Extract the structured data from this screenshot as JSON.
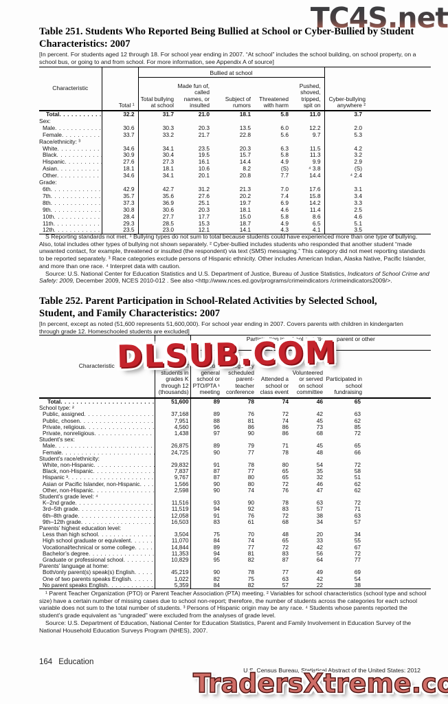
{
  "watermarks": {
    "top": "TC4S.net",
    "middle": "DLSUB.COM",
    "bottom": "TradersXtreme.com",
    "red": "#c4232b",
    "salmon": "#cf6d66"
  },
  "table251": {
    "title": "Table 251. Students Who Reported Being Bullied at School or Cyber-Bullied by Student Characteristics: 2007",
    "note": "[In percent. For students aged 12 through 18. For school year ending in 2007. “At school” includes the school building, on school property, on a school bus, or going to and from school. For more information, see Appendix A of source]",
    "header": {
      "characteristic": "Characteristic",
      "total": "Total ¹",
      "group": "Bullied at school",
      "sub": [
        "Total bullying at school",
        "Made fun of, called names, or insulted",
        "Subject of rumors",
        "Threatened with harm",
        "Pushed, shoved, tripped, spit on"
      ],
      "cyber": "Cyber-bullying anywhere ²"
    },
    "rows": [
      {
        "label": "Total",
        "indent": 10,
        "bold": true,
        "values": [
          "32.2",
          "31.7",
          "21.0",
          "18.1",
          "5.8",
          "11.0",
          "3.7"
        ]
      },
      {
        "label": "Sex:",
        "section": true
      },
      {
        "label": "Male",
        "indent": 5,
        "values": [
          "30.6",
          "30.3",
          "20.3",
          "13.5",
          "6.0",
          "12.2",
          "2.0"
        ]
      },
      {
        "label": "Female",
        "indent": 5,
        "values": [
          "33.7",
          "33.2",
          "21.7",
          "22.8",
          "5.6",
          "9.7",
          "5.3"
        ]
      },
      {
        "label": "Race/ethnicity: ³",
        "section": true
      },
      {
        "label": "White",
        "indent": 5,
        "values": [
          "34.6",
          "34.1",
          "23.5",
          "20.3",
          "6.3",
          "11.5",
          "4.2"
        ]
      },
      {
        "label": "Black",
        "indent": 5,
        "values": [
          "30.9",
          "30.4",
          "19.5",
          "15.7",
          "5.8",
          "11.3",
          "3.2"
        ]
      },
      {
        "label": "Hispanic",
        "indent": 5,
        "values": [
          "27.6",
          "27.3",
          "16.1",
          "14.4",
          "4.9",
          "9.9",
          "2.9"
        ]
      },
      {
        "label": "Asian",
        "indent": 5,
        "values": [
          "18.1",
          "18.1",
          "10.6",
          "8.2",
          "(S)",
          "⁴ 3.8",
          "(S)"
        ]
      },
      {
        "label": "Other",
        "indent": 5,
        "values": [
          "34.6",
          "34.1",
          "20.1",
          "20.8",
          "7.7",
          "14.4",
          "⁴ 2.4"
        ]
      },
      {
        "label": "Grade:",
        "section": true
      },
      {
        "label": "6th",
        "indent": 5,
        "values": [
          "42.9",
          "42.7",
          "31.2",
          "21.3",
          "7.0",
          "17.6",
          "3.1"
        ]
      },
      {
        "label": "7th",
        "indent": 5,
        "values": [
          "35.7",
          "35.6",
          "27.6",
          "20.2",
          "7.4",
          "15.8",
          "3.4"
        ]
      },
      {
        "label": "8th",
        "indent": 5,
        "values": [
          "37.3",
          "36.9",
          "25.1",
          "19.7",
          "6.9",
          "14.2",
          "3.3"
        ]
      },
      {
        "label": "9th",
        "indent": 5,
        "values": [
          "30.8",
          "30.6",
          "20.3",
          "18.1",
          "4.6",
          "11.4",
          "2.5"
        ]
      },
      {
        "label": "10th",
        "indent": 5,
        "values": [
          "28.4",
          "27.7",
          "17.7",
          "15.0",
          "5.8",
          "8.6",
          "4.6"
        ]
      },
      {
        "label": "11th",
        "indent": 5,
        "values": [
          "29.3",
          "28.5",
          "15.3",
          "18.7",
          "4.9",
          "6.5",
          "5.1"
        ]
      },
      {
        "label": "12th",
        "indent": 5,
        "values": [
          "23.5",
          "23.0",
          "12.1",
          "14.1",
          "4.3",
          "4.1",
          "3.5"
        ]
      }
    ],
    "footnote": "S Reporting standards not met. ¹ Bullying types do not sum to total because students could have experienced more than one type of bullying. Also, total includes other types of bullying not shown separately. ² Cyber-bullied includes students who responded that another student “made unwanted contact, for example, threatened or insulted (the respondent) via text (SMS) messaging.” This category did not meet reporting standards to be reported separately. ³ Race categories exclude persons of Hispanic ethnicity. Other includes American Indian, Alaska Native, Pacific Islander, and more than one race. ⁴ Interpret data with caution.",
    "source_pre": "Source: U.S. National Center for Education Statistics and U.S. Department of Justice, Bureau of Justice Statistics, ",
    "source_italic": "Indicators of School Crime and Safety: 2009,",
    "source_post": " December 2009, NCES 2010-012 . See also <http://www.nces.ed.gov/programs/crimeindicators /crimeindicators2009/>."
  },
  "table252": {
    "title": "Table 252. Parent Participation in School-Related Activities by Selected School, Student, and Family Characteristics: 2007",
    "note": "[In percent, except as noted (51,600 represents 51,600,000). For school year ending in 2007. Covers parents with children in kindergarten through grade 12. Homeschooled students are excluded]",
    "header": {
      "characteristic": "Characteristic",
      "students": "Number of students in grades K through 12 (thousands)",
      "group": "Participation in school activities by parent or other household member",
      "sub": [
        "Attended a general school or PTO/PTA ¹ meeting",
        "Regularly scheduled parent-teacher conference",
        "Attended a school or class event",
        "Volunteered or served on school committee",
        "Participated in school fundraising"
      ]
    },
    "rows": [
      {
        "label": "Total",
        "indent": 12,
        "bold": true,
        "values": [
          "51,600",
          "89",
          "78",
          "74",
          "46",
          "65"
        ]
      },
      {
        "label": "School type: ²",
        "section": true
      },
      {
        "label": "Public, assigned",
        "indent": 5,
        "values": [
          "37,168",
          "89",
          "76",
          "72",
          "42",
          "63"
        ]
      },
      {
        "label": "Public, chosen",
        "indent": 5,
        "values": [
          "7,951",
          "88",
          "81",
          "74",
          "45",
          "62"
        ]
      },
      {
        "label": "Private, religious",
        "indent": 5,
        "values": [
          "4,560",
          "96",
          "86",
          "86",
          "73",
          "85"
        ]
      },
      {
        "label": "Private, nonreligious",
        "indent": 5,
        "values": [
          "1,438",
          "97",
          "90",
          "86",
          "68",
          "72"
        ]
      },
      {
        "label": "Student’s sex:",
        "section": true
      },
      {
        "label": "Male",
        "indent": 5,
        "values": [
          "26,875",
          "89",
          "79",
          "71",
          "45",
          "65"
        ]
      },
      {
        "label": "Female",
        "indent": 5,
        "values": [
          "24,725",
          "90",
          "77",
          "78",
          "48",
          "66"
        ]
      },
      {
        "label": "Student’s race/ethnicity:",
        "section": true
      },
      {
        "label": "White, non-Hispanic",
        "indent": 5,
        "values": [
          "29,832",
          "91",
          "78",
          "80",
          "54",
          "72"
        ]
      },
      {
        "label": "Black, non-Hispanic",
        "indent": 5,
        "values": [
          "7,837",
          "87",
          "77",
          "65",
          "35",
          "58"
        ]
      },
      {
        "label": "Hispanic ³",
        "indent": 5,
        "values": [
          "9,767",
          "87",
          "80",
          "65",
          "32",
          "51"
        ]
      },
      {
        "label": "Asian or Pacific Islander, non-Hispanic",
        "indent": 5,
        "values": [
          "1,566",
          "90",
          "80",
          "72",
          "46",
          "62"
        ]
      },
      {
        "label": "Other, non-Hispanic",
        "indent": 5,
        "values": [
          "2,598",
          "90",
          "74",
          "76",
          "47",
          "62"
        ]
      },
      {
        "label": "Student’s grade level: ⁴",
        "section": true
      },
      {
        "label": "K–2nd grade",
        "indent": 5,
        "values": [
          "11,516",
          "93",
          "90",
          "78",
          "63",
          "72"
        ]
      },
      {
        "label": "3rd–5th grade",
        "indent": 5,
        "values": [
          "11,519",
          "94",
          "92",
          "83",
          "57",
          "71"
        ]
      },
      {
        "label": "6th–8th grade",
        "indent": 5,
        "values": [
          "12,058",
          "91",
          "76",
          "72",
          "38",
          "63"
        ]
      },
      {
        "label": "9th–12th grade",
        "indent": 5,
        "values": [
          "16,503",
          "83",
          "61",
          "68",
          "34",
          "57"
        ]
      },
      {
        "label": "Parents’ highest education level:",
        "section": true
      },
      {
        "label": "Less than high school",
        "indent": 5,
        "values": [
          "3,504",
          "75",
          "70",
          "48",
          "20",
          "34"
        ]
      },
      {
        "label": "High school graduate or equivalent",
        "indent": 5,
        "values": [
          "11,070",
          "84",
          "74",
          "65",
          "33",
          "55"
        ]
      },
      {
        "label": "Vocational/technical or some college",
        "indent": 5,
        "values": [
          "14,844",
          "89",
          "77",
          "72",
          "42",
          "67"
        ]
      },
      {
        "label": "Bachelor’s degree",
        "indent": 5,
        "values": [
          "11,353",
          "94",
          "81",
          "83",
          "56",
          "72"
        ]
      },
      {
        "label": "Graduate or professional school",
        "indent": 5,
        "values": [
          "10,829",
          "95",
          "82",
          "87",
          "64",
          "77"
        ]
      },
      {
        "label": "Parents’ language at home:",
        "section": true
      },
      {
        "label": "Both/only parent(s) speak(s) English",
        "indent": 5,
        "values": [
          "45,219",
          "90",
          "78",
          "77",
          "49",
          "69"
        ]
      },
      {
        "label": "One of two parents speaks English",
        "indent": 5,
        "values": [
          "1,022",
          "82",
          "75",
          "63",
          "42",
          "54"
        ]
      },
      {
        "label": "No parent speaks English",
        "indent": 5,
        "values": [
          "5,359",
          "84",
          "82",
          "57",
          "22",
          "38"
        ]
      }
    ],
    "footnote": "¹ Parent Teacher Organization (PTO) or Parent Teacher Association (PTA) meeting. ² Variables for school characteristics (school type and school size) have a certain number of missing cases due to school non-report; therefore, the number of students across the categories for each school variable does not sum to the total number of students. ³ Persons of Hispanic origin may be any race. ⁴ Students whose parents reported the student’s grade equivalent as “ungraded” were excluded from the analyses of grade level.",
    "source": "Source: U.S. Department of Education, National Center for Education Statistics, Parent and Family Involvement in Education Survey of the National Household Education Surveys Program (NHES), 2007."
  },
  "footer": {
    "page_number": "164",
    "section": "Education",
    "imprint": "U.S. Census Bureau, Statistical Abstract of the United States: 2012"
  }
}
